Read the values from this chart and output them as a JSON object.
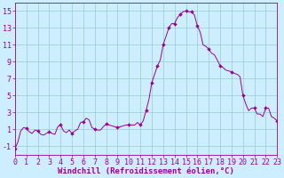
{
  "x": [
    0,
    0.25,
    0.5,
    0.75,
    1,
    1.25,
    1.5,
    1.75,
    2,
    2.25,
    2.5,
    2.75,
    3,
    3.25,
    3.5,
    3.75,
    4,
    4.25,
    4.5,
    4.75,
    5,
    5.25,
    5.5,
    5.75,
    6,
    6.25,
    6.5,
    6.75,
    7,
    7.25,
    7.5,
    7.75,
    8,
    8.25,
    8.5,
    8.75,
    9,
    9.25,
    9.5,
    9.75,
    10,
    10.25,
    10.5,
    10.75,
    11,
    11.25,
    11.5,
    11.75,
    12,
    12.25,
    12.5,
    12.75,
    13,
    13.25,
    13.5,
    13.75,
    14,
    14.25,
    14.5,
    14.75,
    15,
    15.25,
    15.5,
    15.75,
    16,
    16.25,
    16.5,
    16.75,
    17,
    17.25,
    17.5,
    17.75,
    18,
    18.25,
    18.5,
    18.75,
    19,
    19.25,
    19.5,
    19.75,
    20,
    20.25,
    20.5,
    20.75,
    21,
    21.25,
    21.5,
    21.75,
    22,
    22.25,
    22.5,
    22.75,
    23
  ],
  "y": [
    -1.3,
    -0.5,
    0.8,
    1.2,
    1.1,
    0.7,
    0.5,
    0.9,
    0.8,
    0.4,
    0.3,
    0.5,
    0.7,
    0.5,
    0.4,
    1.3,
    1.5,
    0.8,
    0.6,
    0.9,
    0.5,
    0.8,
    1.0,
    1.8,
    1.9,
    2.3,
    2.1,
    1.2,
    1.0,
    0.9,
    0.9,
    1.3,
    1.6,
    1.5,
    1.4,
    1.3,
    1.2,
    1.3,
    1.4,
    1.5,
    1.5,
    1.5,
    1.5,
    1.8,
    1.5,
    2.0,
    3.2,
    4.5,
    6.5,
    7.5,
    8.5,
    9.2,
    11.0,
    12.0,
    13.0,
    13.5,
    13.5,
    14.2,
    14.6,
    14.9,
    15.0,
    14.9,
    14.9,
    14.5,
    13.2,
    12.5,
    11.0,
    10.8,
    10.5,
    10.0,
    9.8,
    9.2,
    8.5,
    8.3,
    8.0,
    7.9,
    7.8,
    7.6,
    7.5,
    7.2,
    5.0,
    4.0,
    3.2,
    3.5,
    3.5,
    2.8,
    2.8,
    2.5,
    3.5,
    3.5,
    2.5,
    2.3,
    2.0
  ],
  "marker_x": [
    0,
    1,
    2,
    3,
    4,
    5,
    6,
    7,
    8,
    9,
    10,
    11,
    11.5,
    12,
    12.5,
    13,
    13.5,
    14,
    14.5,
    15,
    15.5,
    16,
    17,
    18,
    19,
    20,
    21,
    22,
    23
  ],
  "marker_y": [
    -1.3,
    1.1,
    0.8,
    0.7,
    1.5,
    0.5,
    1.9,
    1.0,
    1.6,
    1.2,
    1.5,
    1.5,
    3.2,
    6.5,
    8.5,
    11.0,
    13.0,
    13.5,
    14.6,
    15.0,
    14.9,
    13.2,
    10.5,
    8.5,
    7.8,
    5.0,
    3.5,
    3.5,
    2.0
  ],
  "line_color": "#990099",
  "marker": "D",
  "marker_size": 2.0,
  "background_color": "#cceeff",
  "grid_color": "#99cccc",
  "xlabel": "Windchill (Refroidissement éolien,°C)",
  "xlim": [
    0,
    23
  ],
  "ylim": [
    -2,
    16
  ],
  "yticks": [
    -1,
    1,
    3,
    5,
    7,
    9,
    11,
    13,
    15
  ],
  "xticks": [
    0,
    1,
    2,
    3,
    4,
    5,
    6,
    7,
    8,
    9,
    10,
    11,
    12,
    13,
    14,
    15,
    16,
    17,
    18,
    19,
    20,
    21,
    22,
    23
  ],
  "xlabel_fontsize": 6.5,
  "tick_fontsize": 6.0,
  "tick_color": "#990099",
  "spine_color": "#990099",
  "grid_major_every": 2
}
